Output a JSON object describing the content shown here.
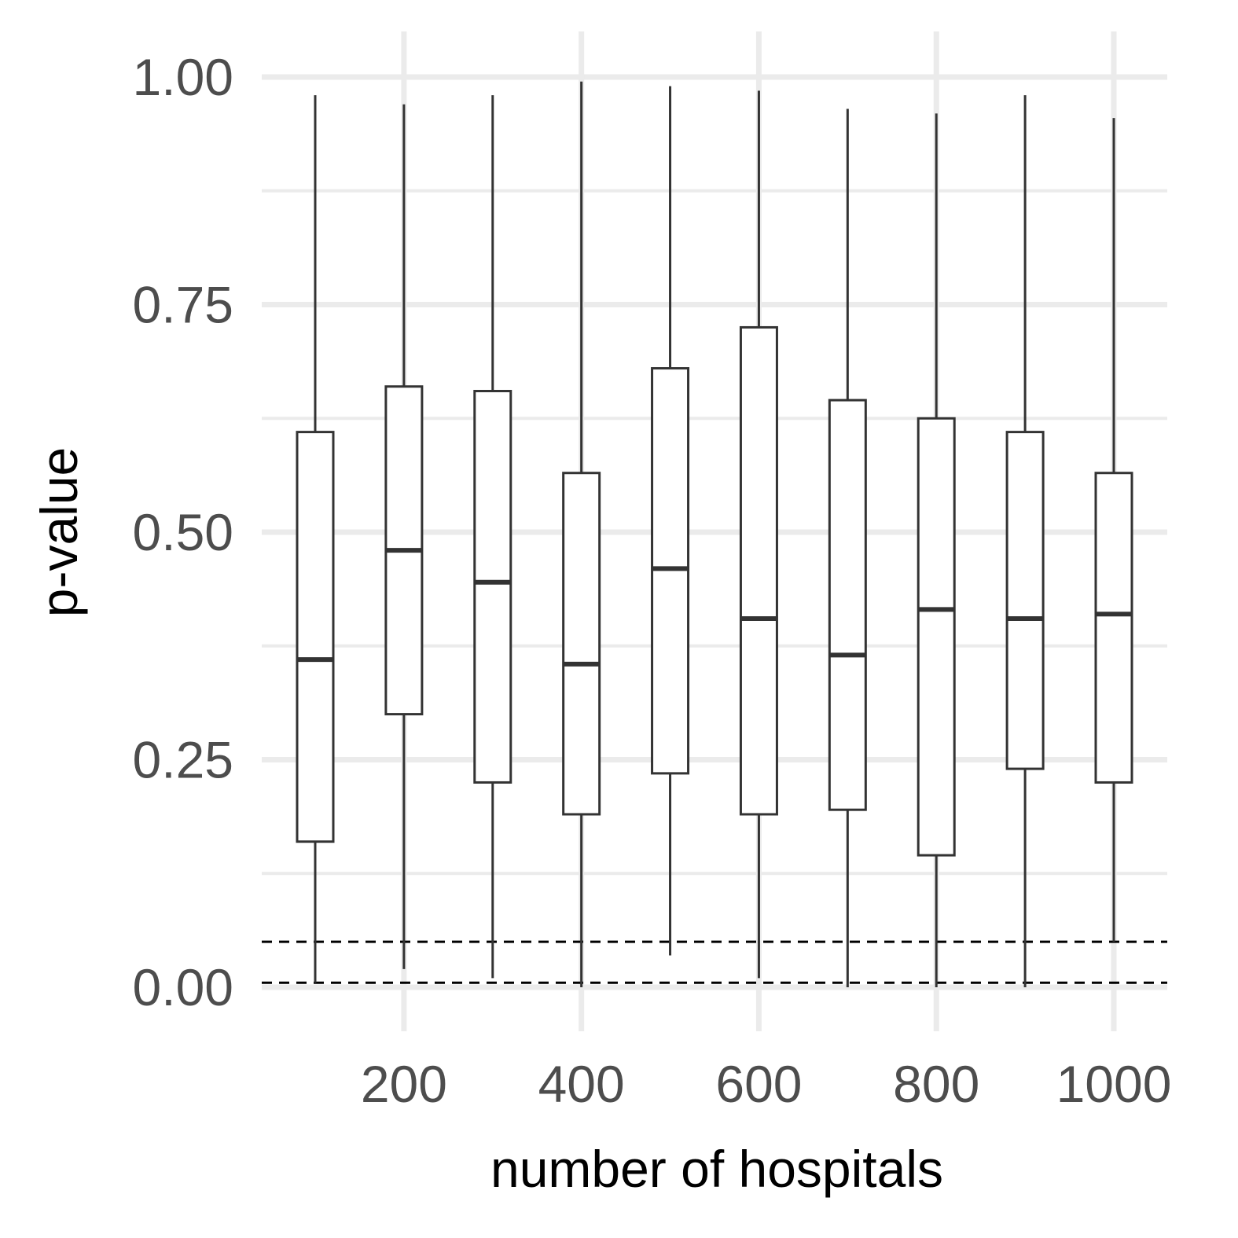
{
  "chart_data": {
    "type": "boxplot",
    "title": "",
    "xlabel": "number of hospitals",
    "ylabel": "p-value",
    "xlim": [
      60,
      1060
    ],
    "ylim": [
      -0.005,
      1.02
    ],
    "x_ticks": [
      200,
      400,
      600,
      800,
      1000
    ],
    "x_tick_labels": [
      "200",
      "400",
      "600",
      "800",
      "1000"
    ],
    "y_ticks": [
      0.0,
      0.25,
      0.5,
      0.75,
      1.0
    ],
    "y_tick_labels": [
      "0.00",
      "0.25",
      "0.50",
      "0.75",
      "1.00"
    ],
    "y_minor_ticks": [
      0.125,
      0.375,
      0.625,
      0.875
    ],
    "grid": true,
    "reference_lines": [
      0.05,
      0.005
    ],
    "boxes": [
      {
        "x": 100,
        "min": 0.005,
        "q1": 0.16,
        "median": 0.36,
        "q3": 0.61,
        "max": 0.98
      },
      {
        "x": 200,
        "min": 0.02,
        "q1": 0.3,
        "median": 0.48,
        "q3": 0.66,
        "max": 0.97
      },
      {
        "x": 300,
        "min": 0.01,
        "q1": 0.225,
        "median": 0.445,
        "q3": 0.655,
        "max": 0.98
      },
      {
        "x": 400,
        "min": 0.0,
        "q1": 0.19,
        "median": 0.355,
        "q3": 0.565,
        "max": 0.995
      },
      {
        "x": 500,
        "min": 0.035,
        "q1": 0.235,
        "median": 0.46,
        "q3": 0.68,
        "max": 0.99
      },
      {
        "x": 600,
        "min": 0.01,
        "q1": 0.19,
        "median": 0.405,
        "q3": 0.725,
        "max": 0.985
      },
      {
        "x": 700,
        "min": 0.0,
        "q1": 0.195,
        "median": 0.365,
        "q3": 0.645,
        "max": 0.965
      },
      {
        "x": 800,
        "min": 0.0,
        "q1": 0.145,
        "median": 0.415,
        "q3": 0.625,
        "max": 0.96
      },
      {
        "x": 900,
        "min": 0.0,
        "q1": 0.24,
        "median": 0.405,
        "q3": 0.61,
        "max": 0.98
      },
      {
        "x": 1000,
        "min": 0.05,
        "q1": 0.225,
        "median": 0.41,
        "q3": 0.565,
        "max": 0.955
      }
    ],
    "colors": {
      "grid": "#ebebeb",
      "box_stroke": "#333333",
      "box_fill": "#ffffff",
      "reference_line": "#000000",
      "tick_text": "#4d4d4d",
      "axis_title": "#000000"
    }
  }
}
